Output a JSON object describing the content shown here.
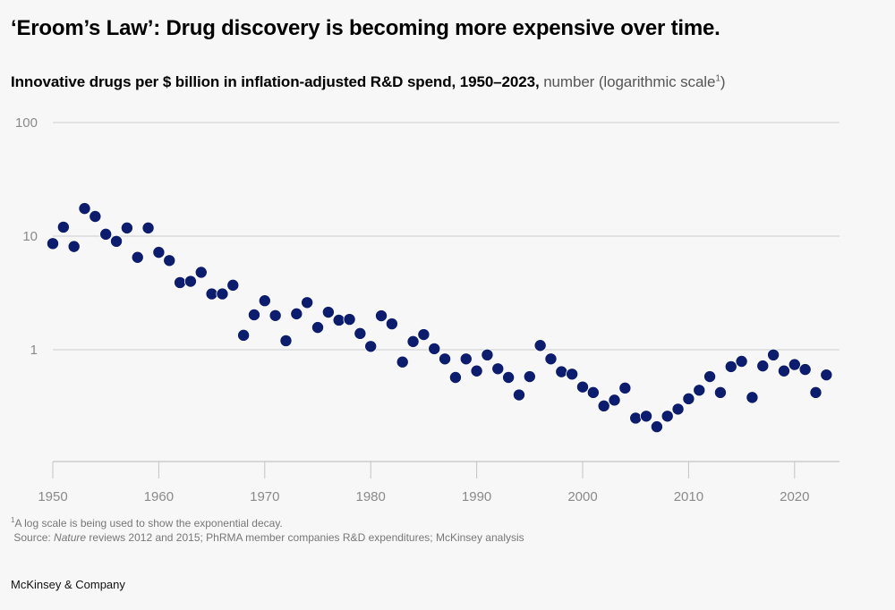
{
  "header": {
    "title": "‘Eroom’s Law’: Drug discovery is becoming more expensive over time.",
    "subtitle_bold": "Innovative drugs per $ billion in inflation-adjusted R&D spend, 1950–2023,",
    "subtitle_light": " number (logarithmic scale",
    "subtitle_sup": "1",
    "subtitle_close": ")"
  },
  "footer": {
    "note_sup": "1",
    "note": "A log scale is being used to show the exponential decay.",
    "source_prefix": "Source: ",
    "source_italic": "Nature",
    "source_rest": " reviews 2012 and 2015; PhRMA member companies R&D expenditures; McKinsey analysis",
    "brand": "McKinsey & Company"
  },
  "colors": {
    "dot": "#0c1c6e",
    "grid": "#cccccc",
    "axis": "#c4c4c4",
    "background": "#f7f7f7"
  },
  "chart_data": {
    "type": "scatter",
    "title": "Innovative drugs per $ billion in inflation-adjusted R&D spend, 1950–2023",
    "xlabel": "",
    "ylabel": "number (logarithmic scale)",
    "yscale": "log",
    "ylim": [
      0.16,
      100
    ],
    "xlim": [
      1950,
      2024
    ],
    "yticks": [
      100,
      10,
      1
    ],
    "ytick_labels": [
      "100",
      "10",
      "1"
    ],
    "xticks": [
      1950,
      1960,
      1970,
      1980,
      1990,
      2000,
      2010,
      2020
    ],
    "xtick_labels": [
      "1950",
      "1960",
      "1970",
      "1980",
      "1990",
      "2000",
      "2010",
      "2020"
    ],
    "grid": true,
    "legend": "none",
    "x": [
      1950,
      1951,
      1952,
      1953,
      1954,
      1955,
      1956,
      1957,
      1958,
      1959,
      1960,
      1961,
      1962,
      1963,
      1964,
      1965,
      1966,
      1967,
      1968,
      1969,
      1970,
      1971,
      1972,
      1973,
      1974,
      1975,
      1976,
      1977,
      1978,
      1979,
      1980,
      1981,
      1982,
      1983,
      1984,
      1985,
      1986,
      1987,
      1988,
      1989,
      1990,
      1991,
      1992,
      1993,
      1994,
      1995,
      1996,
      1997,
      1998,
      1999,
      2000,
      2001,
      2002,
      2003,
      2004,
      2005,
      2006,
      2007,
      2008,
      2009,
      2010,
      2011,
      2012,
      2013,
      2014,
      2015,
      2016,
      2017,
      2018,
      2019,
      2020,
      2021,
      2022,
      2023
    ],
    "y": [
      8.6,
      12.0,
      8.1,
      17.5,
      14.9,
      10.4,
      9.0,
      11.8,
      6.5,
      11.8,
      7.2,
      6.1,
      3.9,
      4.0,
      4.8,
      3.1,
      3.1,
      3.7,
      1.34,
      2.03,
      2.7,
      2.0,
      1.2,
      2.07,
      2.6,
      1.57,
      2.14,
      1.82,
      1.85,
      1.39,
      1.07,
      1.99,
      1.69,
      0.78,
      1.18,
      1.36,
      1.02,
      0.83,
      0.57,
      0.83,
      0.65,
      0.9,
      0.68,
      0.57,
      0.4,
      0.58,
      1.09,
      0.83,
      0.64,
      0.61,
      0.47,
      0.42,
      0.32,
      0.36,
      0.46,
      0.25,
      0.26,
      0.21,
      0.26,
      0.3,
      0.37,
      0.44,
      0.58,
      0.42,
      0.71,
      0.79,
      0.38,
      0.72,
      0.9,
      0.65,
      0.74,
      0.67,
      0.42,
      0.6
    ]
  }
}
